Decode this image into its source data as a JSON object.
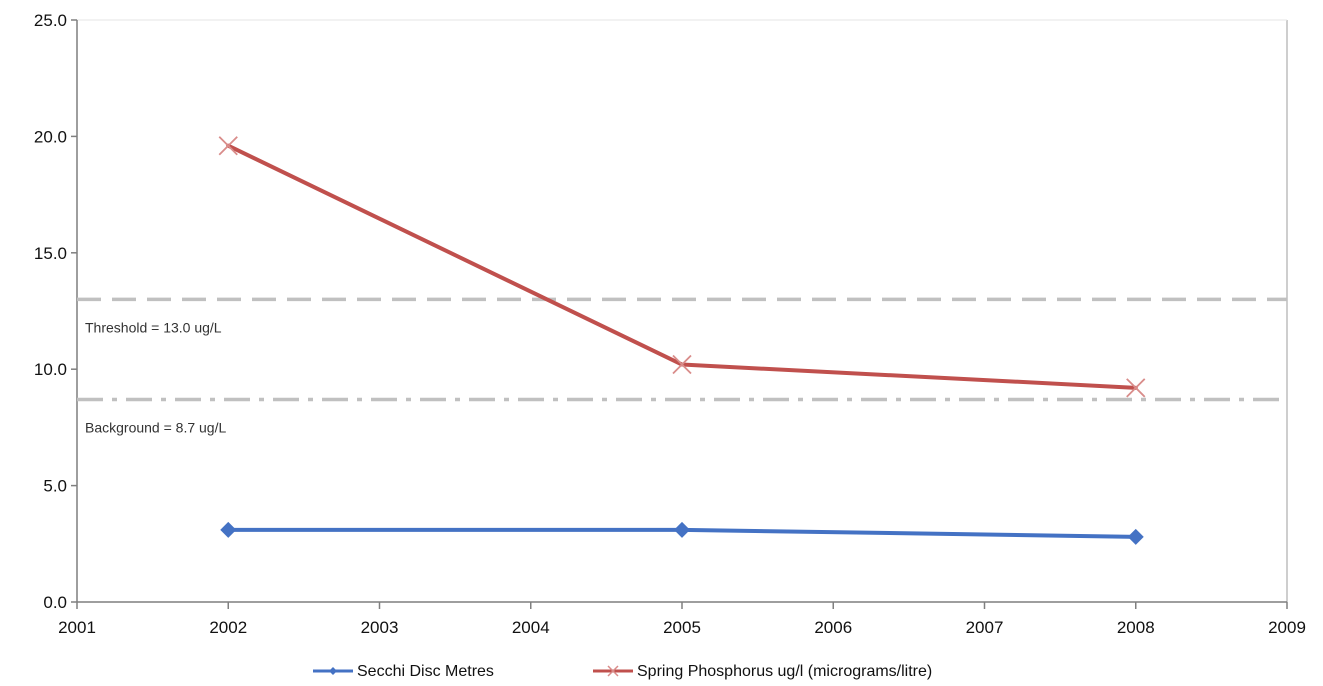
{
  "chart_data": {
    "type": "line",
    "title": "",
    "xlabel": "",
    "ylabel": "",
    "xlim": [
      2001,
      2009
    ],
    "ylim": [
      0,
      25
    ],
    "x_ticks": [
      2001,
      2002,
      2003,
      2004,
      2005,
      2006,
      2007,
      2008,
      2009
    ],
    "y_ticks": [
      "0.0",
      "5.0",
      "10.0",
      "15.0",
      "20.0",
      "25.0"
    ],
    "grid": false,
    "legend_position": "bottom",
    "series": [
      {
        "name": "Secchi Disc Metres",
        "color": "#4472c4",
        "marker": "diamond",
        "points": [
          {
            "x": 2002,
            "y": 3.1
          },
          {
            "x": 2005,
            "y": 3.1
          },
          {
            "x": 2008,
            "y": 2.8
          }
        ]
      },
      {
        "name": "Spring Phosphorus ug/l (micrograms/litre)",
        "color": "#c0504d",
        "marker": "x",
        "points": [
          {
            "x": 2002,
            "y": 19.6
          },
          {
            "x": 2005,
            "y": 10.2
          },
          {
            "x": 2008,
            "y": 9.2
          }
        ]
      }
    ],
    "reference_lines": [
      {
        "label": "Threshold = 13.0 ug/L",
        "y": 13.0,
        "style": "dashed",
        "color": "#c0c0c0"
      },
      {
        "label": "Background = 8.7 ug/L",
        "y": 8.7,
        "style": "dash-dot",
        "color": "#c0c0c0"
      }
    ]
  }
}
